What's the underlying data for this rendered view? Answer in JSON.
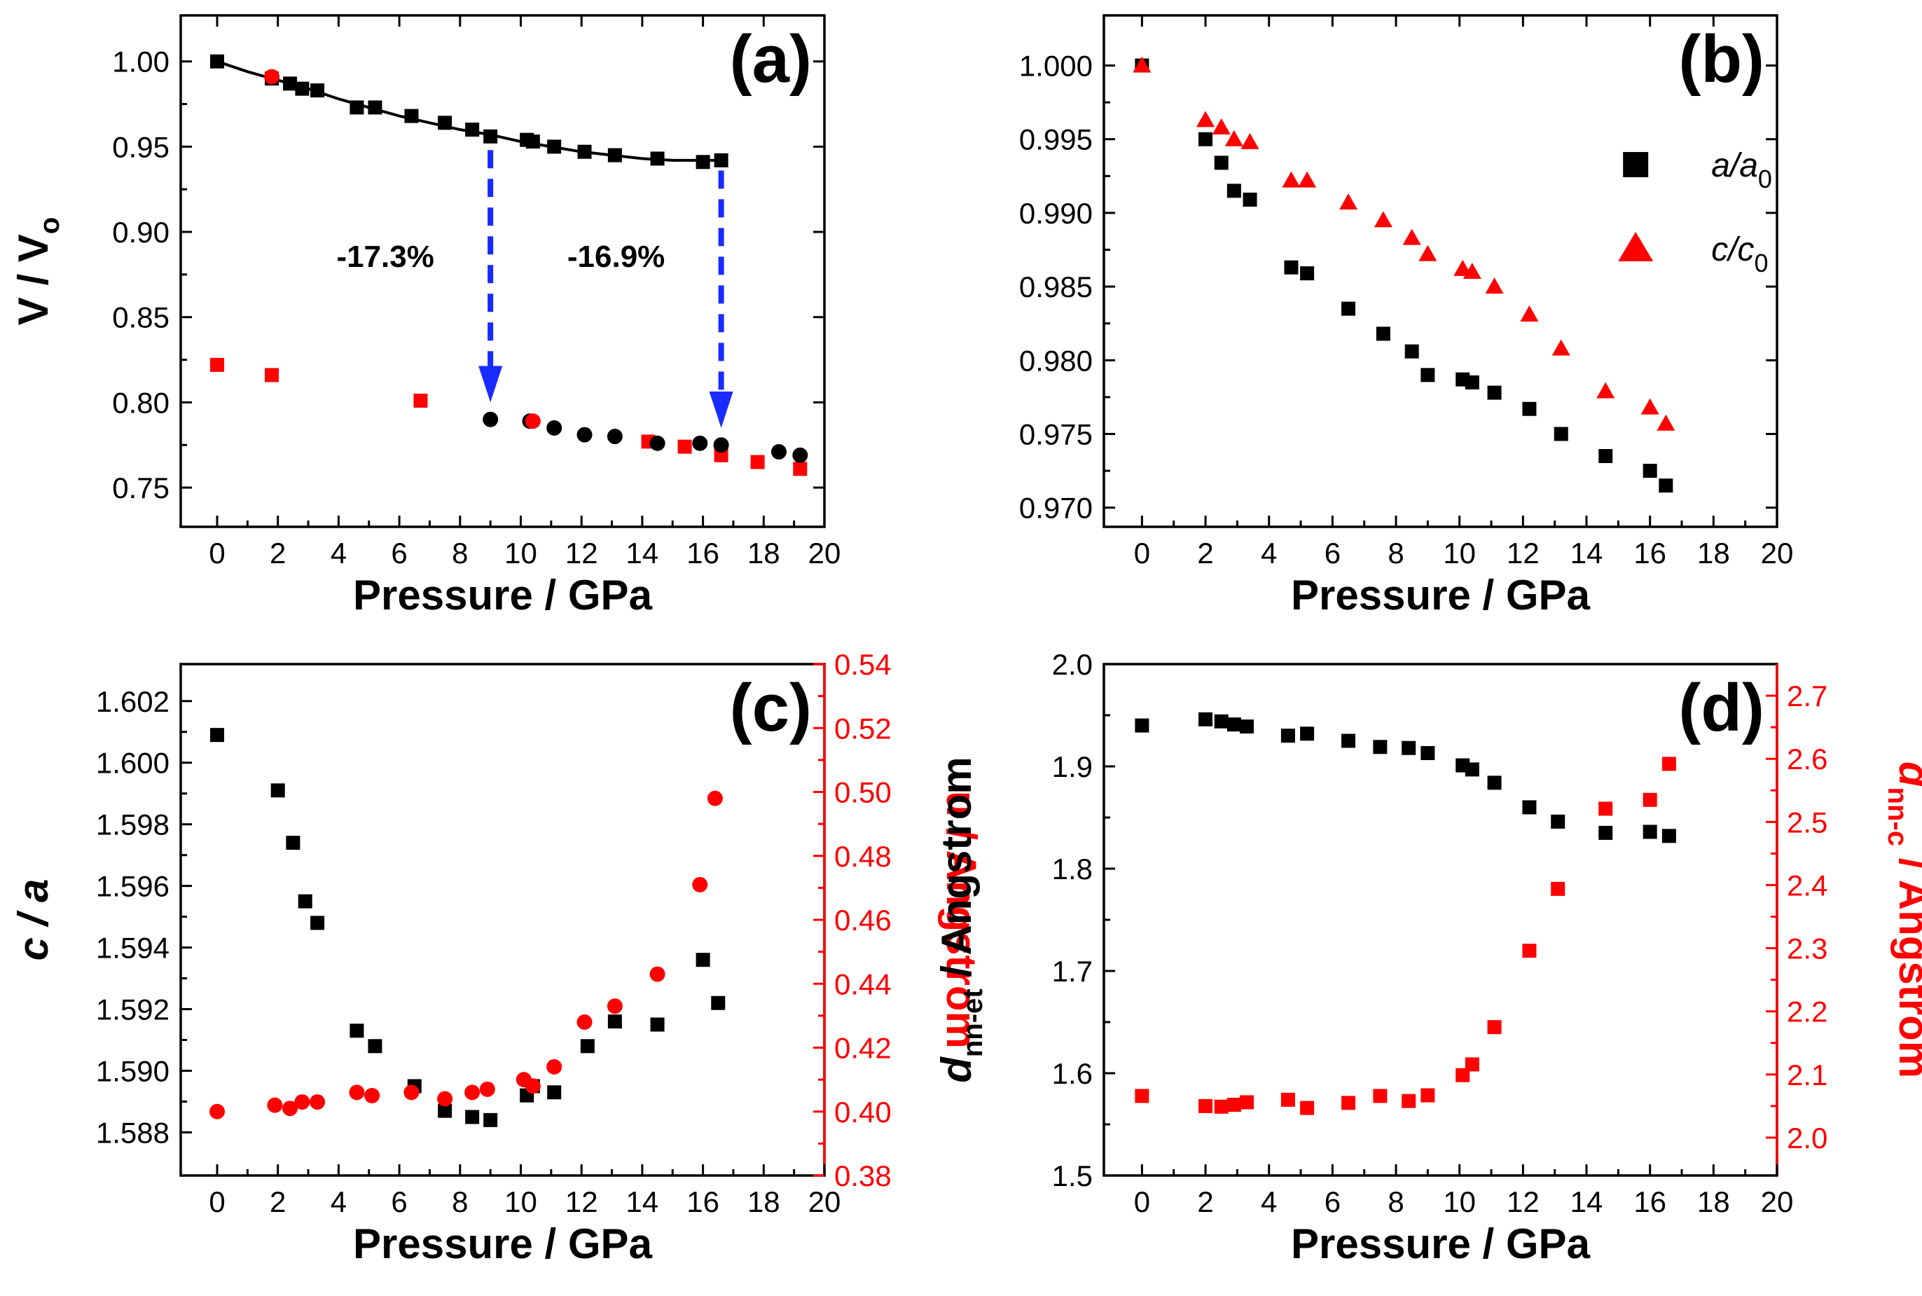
{
  "colors": {
    "black": "#000000",
    "red": "#ff0000",
    "blue": "#1a2bff"
  },
  "chart_data": [
    {
      "id": "a",
      "type": "scatter",
      "panel_label": "(a)",
      "xlabel": "Pressure / GPa",
      "ylabel": "V / V",
      "ylabel_sub": "o",
      "xlim": [
        -1.2,
        20
      ],
      "ylim": [
        0.727,
        1.027
      ],
      "xticks": [
        0,
        2,
        4,
        6,
        8,
        10,
        12,
        14,
        16,
        18,
        20
      ],
      "yticks": [
        0.75,
        0.8,
        0.85,
        0.9,
        0.95,
        1.0
      ],
      "ytick_labels": [
        "0.75",
        "0.80",
        "0.85",
        "0.90",
        "0.95",
        "1.00"
      ],
      "annotations": [
        "-17.3%",
        "-16.9%"
      ],
      "fit_line": {
        "x": [
          0,
          1,
          2,
          3,
          4,
          5,
          6,
          7,
          8,
          9,
          10,
          11,
          12,
          13,
          14,
          15,
          16,
          16.6
        ],
        "y": [
          1.0,
          0.994,
          0.989,
          0.984,
          0.978,
          0.973,
          0.968,
          0.964,
          0.96,
          0.957,
          0.953,
          0.95,
          0.947,
          0.945,
          0.943,
          0.942,
          0.942,
          0.942
        ]
      },
      "arrows": [
        {
          "x": 9.0,
          "y_from": 0.948,
          "y_to": 0.8
        },
        {
          "x": 16.6,
          "y_from": 0.936,
          "y_to": 0.785
        }
      ],
      "series": [
        {
          "name": "black squares",
          "marker": "square",
          "color": "#000000",
          "x": [
            0,
            1.8,
            2.4,
            2.8,
            3.3,
            4.6,
            5.2,
            6.4,
            7.5,
            8.4,
            9.0,
            10.2,
            10.4,
            11.1,
            12.1,
            13.1,
            14.5,
            16.0,
            16.6
          ],
          "y": [
            1.0,
            0.99,
            0.987,
            0.984,
            0.983,
            0.973,
            0.973,
            0.968,
            0.964,
            0.96,
            0.956,
            0.954,
            0.953,
            0.95,
            0.947,
            0.945,
            0.943,
            0.941,
            0.942
          ]
        },
        {
          "name": "red squares",
          "marker": "square",
          "color": "#ff0000",
          "x": [
            0,
            1.8,
            6.7,
            14.2,
            15.4,
            16.6,
            17.8,
            19.2
          ],
          "y": [
            0.822,
            0.816,
            0.801,
            0.777,
            0.774,
            0.769,
            0.765,
            0.761
          ]
        },
        {
          "name": "black circles",
          "marker": "circle",
          "color": "#000000",
          "x": [
            9.0,
            10.3,
            11.1,
            12.1,
            13.1,
            14.5,
            15.9,
            16.6,
            18.5,
            19.2
          ],
          "y": [
            0.79,
            0.789,
            0.785,
            0.781,
            0.78,
            0.776,
            0.776,
            0.775,
            0.771,
            0.769
          ]
        },
        {
          "name": "red circles",
          "marker": "circle",
          "color": "#ff0000",
          "x": [
            1.8,
            10.4
          ],
          "y": [
            0.991,
            0.789
          ]
        }
      ]
    },
    {
      "id": "b",
      "type": "scatter",
      "panel_label": "(b)",
      "xlabel": "Pressure / GPa",
      "xlim": [
        -1.2,
        20
      ],
      "ylim": [
        0.9687,
        1.0034
      ],
      "xticks": [
        0,
        2,
        4,
        6,
        8,
        10,
        12,
        14,
        16,
        18,
        20
      ],
      "yticks": [
        0.97,
        0.975,
        0.98,
        0.985,
        0.99,
        0.995,
        1.0
      ],
      "ytick_labels": [
        "0.970",
        "0.975",
        "0.980",
        "0.985",
        "0.990",
        "0.995",
        "1.000"
      ],
      "legend_position": "top-right",
      "legend": [
        {
          "marker": "square",
          "color": "#000000",
          "text": "a/a",
          "sub": "0"
        },
        {
          "marker": "triangle",
          "color": "#ff0000",
          "text": "c/c",
          "sub": "0"
        }
      ],
      "series": [
        {
          "name": "a/a0",
          "marker": "square",
          "color": "#000000",
          "x": [
            0,
            2.0,
            2.5,
            2.9,
            3.4,
            4.7,
            5.2,
            6.5,
            7.6,
            8.5,
            9.0,
            10.1,
            10.4,
            11.1,
            12.2,
            13.2,
            14.6,
            16.0,
            16.5
          ],
          "y": [
            1.0,
            0.995,
            0.9934,
            0.9915,
            0.9909,
            0.9863,
            0.9859,
            0.9835,
            0.9818,
            0.9806,
            0.979,
            0.9787,
            0.9785,
            0.9778,
            0.9767,
            0.975,
            0.9735,
            0.9725,
            0.9715
          ]
        },
        {
          "name": "c/c0",
          "marker": "triangle",
          "color": "#ff0000",
          "x": [
            0,
            2.0,
            2.5,
            2.9,
            3.4,
            4.7,
            5.2,
            6.5,
            7.6,
            8.5,
            9.0,
            10.1,
            10.4,
            11.1,
            12.2,
            13.2,
            14.6,
            16.0,
            16.5
          ],
          "y": [
            1.0,
            0.9963,
            0.9958,
            0.995,
            0.9948,
            0.9922,
            0.9922,
            0.9907,
            0.9895,
            0.9883,
            0.9872,
            0.9862,
            0.986,
            0.985,
            0.9831,
            0.9808,
            0.9779,
            0.9768,
            0.9757
          ]
        }
      ]
    },
    {
      "id": "c",
      "type": "scatter",
      "panel_label": "(c)",
      "xlabel": "Pressure / GPa",
      "ylabel": "c / a",
      "y2label": "u / Angstrom",
      "xlim": [
        -1.2,
        20
      ],
      "ylim": [
        1.5866,
        1.6032
      ],
      "y2lim": [
        0.38,
        0.54
      ],
      "xticks": [
        0,
        2,
        4,
        6,
        8,
        10,
        12,
        14,
        16,
        18,
        20
      ],
      "yticks": [
        1.588,
        1.59,
        1.592,
        1.594,
        1.596,
        1.598,
        1.6,
        1.602
      ],
      "ytick_labels": [
        "1.588",
        "1.590",
        "1.592",
        "1.594",
        "1.596",
        "1.598",
        "1.600",
        "1.602"
      ],
      "y2ticks": [
        0.38,
        0.4,
        0.42,
        0.44,
        0.46,
        0.48,
        0.5,
        0.52,
        0.54
      ],
      "y2tick_labels": [
        "0.38",
        "0.40",
        "0.42",
        "0.44",
        "0.46",
        "0.48",
        "0.50",
        "0.52",
        "0.54"
      ],
      "series": [
        {
          "name": "c/a",
          "axis": "left",
          "marker": "square",
          "color": "#000000",
          "x": [
            0,
            2.0,
            2.5,
            2.9,
            3.3,
            4.6,
            5.2,
            6.5,
            7.5,
            8.4,
            9.0,
            10.2,
            10.4,
            11.1,
            12.2,
            13.1,
            14.5,
            16.0,
            16.5
          ],
          "y": [
            1.6009,
            1.5991,
            1.5974,
            1.5955,
            1.5948,
            1.5913,
            1.5908,
            1.5895,
            1.5887,
            1.5885,
            1.5884,
            1.5892,
            1.5895,
            1.5893,
            1.5908,
            1.5916,
            1.5915,
            1.5936,
            1.5922
          ]
        },
        {
          "name": "u",
          "axis": "right",
          "marker": "circle",
          "color": "#ff0000",
          "x": [
            0,
            1.9,
            2.4,
            2.8,
            3.3,
            4.6,
            5.1,
            6.4,
            7.5,
            8.4,
            8.9,
            10.1,
            10.4,
            11.1,
            12.1,
            13.1,
            14.5,
            15.9,
            16.4
          ],
          "y": [
            0.4,
            0.402,
            0.401,
            0.403,
            0.403,
            0.406,
            0.405,
            0.406,
            0.404,
            0.406,
            0.407,
            0.41,
            0.408,
            0.414,
            0.428,
            0.433,
            0.443,
            0.471,
            0.498
          ]
        }
      ]
    },
    {
      "id": "d",
      "type": "scatter",
      "panel_label": "(d)",
      "xlabel": "Pressure / GPa",
      "ylabel": "d",
      "ylabel_sub": "nn-et",
      "ylabel_rest": " / Angstrom",
      "y2label": "d",
      "y2label_sub": "nn-c",
      "y2label_rest": " / Angstrom",
      "xlim": [
        -1.2,
        20
      ],
      "ylim": [
        1.5,
        2.0
      ],
      "y2lim": [
        1.94,
        2.75
      ],
      "xticks": [
        0,
        2,
        4,
        6,
        8,
        10,
        12,
        14,
        16,
        18,
        20
      ],
      "yticks": [
        1.5,
        1.6,
        1.7,
        1.8,
        1.9,
        2.0
      ],
      "ytick_labels": [
        "1.5",
        "1.6",
        "1.7",
        "1.8",
        "1.9",
        "2.0"
      ],
      "y2ticks": [
        2.0,
        2.1,
        2.2,
        2.3,
        2.4,
        2.5,
        2.6,
        2.7
      ],
      "y2tick_labels": [
        "2.0",
        "2.1",
        "2.2",
        "2.3",
        "2.4",
        "2.5",
        "2.6",
        "2.7"
      ],
      "series": [
        {
          "name": "d nn-et",
          "axis": "left",
          "marker": "square",
          "color": "#000000",
          "x": [
            0,
            2.0,
            2.5,
            2.9,
            3.3,
            4.6,
            5.2,
            6.5,
            7.5,
            8.4,
            9.0,
            10.1,
            10.4,
            11.1,
            12.2,
            13.1,
            14.6,
            16.0,
            16.6
          ],
          "y": [
            1.94,
            1.946,
            1.944,
            1.941,
            1.939,
            1.93,
            1.932,
            1.925,
            1.919,
            1.918,
            1.913,
            1.901,
            1.897,
            1.884,
            1.86,
            1.846,
            1.835,
            1.836,
            1.832
          ]
        },
        {
          "name": "d nn-c",
          "axis": "right",
          "marker": "square",
          "color": "#ff0000",
          "x": [
            0,
            2.0,
            2.5,
            2.9,
            3.3,
            4.6,
            5.2,
            6.5,
            7.5,
            8.4,
            9.0,
            10.1,
            10.4,
            11.1,
            12.2,
            13.1,
            14.6,
            16.0,
            16.6
          ],
          "y": [
            2.066,
            2.05,
            2.049,
            2.052,
            2.056,
            2.06,
            2.047,
            2.055,
            2.066,
            2.058,
            2.067,
            2.099,
            2.116,
            2.175,
            2.296,
            2.394,
            2.521,
            2.535,
            2.592
          ]
        }
      ]
    }
  ]
}
